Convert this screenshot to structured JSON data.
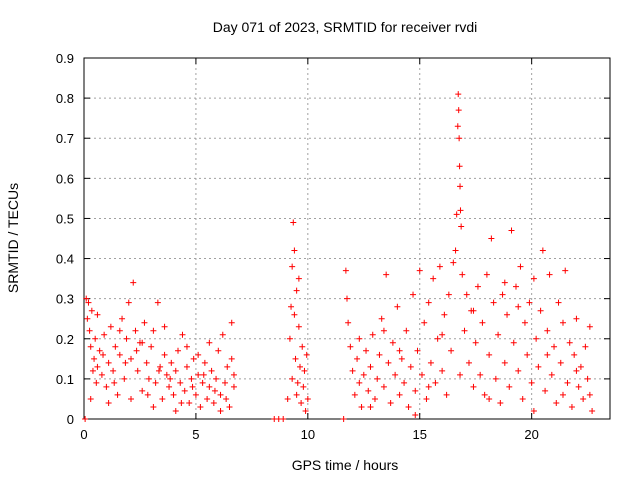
{
  "chart_data": {
    "type": "scatter",
    "title": "Day 071 of 2023, SRMTID for receiver rvdi",
    "xlabel": "GPS time / hours",
    "ylabel": "SRMTID / TECUs",
    "xlim": [
      0,
      23.5
    ],
    "ylim": [
      0,
      0.9
    ],
    "xticks": [
      0,
      5,
      10,
      15,
      20
    ],
    "yticks": [
      0,
      0.1,
      0.2,
      0.3,
      0.4,
      0.5,
      0.6,
      0.7,
      0.8,
      0.9
    ],
    "xtick_labels": [
      "0",
      "5",
      "10",
      "15",
      "20"
    ],
    "ytick_labels": [
      "0",
      "0.1",
      "0.2",
      "0.3",
      "0.4",
      "0.5",
      "0.6",
      "0.7",
      "0.8",
      "0.9"
    ],
    "grid": true,
    "marker": "+",
    "color": "#ff0000",
    "series": [
      {
        "name": "SRMTID",
        "points": [
          [
            0.05,
            0.0
          ],
          [
            0.1,
            0.3
          ],
          [
            0.15,
            0.25
          ],
          [
            0.2,
            0.29
          ],
          [
            0.25,
            0.22
          ],
          [
            0.3,
            0.18
          ],
          [
            0.35,
            0.27
          ],
          [
            0.4,
            0.12
          ],
          [
            0.45,
            0.15
          ],
          [
            0.5,
            0.2
          ],
          [
            0.55,
            0.09
          ],
          [
            0.6,
            0.13
          ],
          [
            0.7,
            0.17
          ],
          [
            0.8,
            0.11
          ],
          [
            0.9,
            0.21
          ],
          [
            1.0,
            0.08
          ],
          [
            1.1,
            0.14
          ],
          [
            1.2,
            0.23
          ],
          [
            1.3,
            0.12
          ],
          [
            1.4,
            0.18
          ],
          [
            1.5,
            0.06
          ],
          [
            1.6,
            0.16
          ],
          [
            1.7,
            0.25
          ],
          [
            1.8,
            0.1
          ],
          [
            1.9,
            0.2
          ],
          [
            2.0,
            0.29
          ],
          [
            2.1,
            0.15
          ],
          [
            2.2,
            0.34
          ],
          [
            2.3,
            0.22
          ],
          [
            2.4,
            0.12
          ],
          [
            2.5,
            0.19
          ],
          [
            2.6,
            0.07
          ],
          [
            2.7,
            0.24
          ],
          [
            2.8,
            0.14
          ],
          [
            2.9,
            0.1
          ],
          [
            3.0,
            0.18
          ],
          [
            3.1,
            0.22
          ],
          [
            3.2,
            0.09
          ],
          [
            3.3,
            0.29
          ],
          [
            3.4,
            0.13
          ],
          [
            3.5,
            0.05
          ],
          [
            3.6,
            0.16
          ],
          [
            3.7,
            0.11
          ],
          [
            3.8,
            0.08
          ],
          [
            3.9,
            0.14
          ],
          [
            4.0,
            0.06
          ],
          [
            4.1,
            0.12
          ],
          [
            4.2,
            0.17
          ],
          [
            4.3,
            0.09
          ],
          [
            4.4,
            0.21
          ],
          [
            4.5,
            0.07
          ],
          [
            4.6,
            0.13
          ],
          [
            4.7,
            0.04
          ],
          [
            4.8,
            0.1
          ],
          [
            4.9,
            0.15
          ],
          [
            5.0,
            0.06
          ],
          [
            5.1,
            0.11
          ],
          [
            5.2,
            0.03
          ],
          [
            5.3,
            0.09
          ],
          [
            5.4,
            0.14
          ],
          [
            5.5,
            0.05
          ],
          [
            5.6,
            0.08
          ],
          [
            5.7,
            0.12
          ],
          [
            5.8,
            0.04
          ],
          [
            5.9,
            0.1
          ],
          [
            6.0,
            0.17
          ],
          [
            6.1,
            0.06
          ],
          [
            6.2,
            0.21
          ],
          [
            6.3,
            0.09
          ],
          [
            6.4,
            0.13
          ],
          [
            6.5,
            0.03
          ],
          [
            6.6,
            0.24
          ],
          [
            6.7,
            0.08
          ],
          [
            0.3,
            0.05
          ],
          [
            0.6,
            0.26
          ],
          [
            1.1,
            0.04
          ],
          [
            1.6,
            0.22
          ],
          [
            2.1,
            0.05
          ],
          [
            2.6,
            0.19
          ],
          [
            3.1,
            0.03
          ],
          [
            3.6,
            0.23
          ],
          [
            4.1,
            0.02
          ],
          [
            4.6,
            0.18
          ],
          [
            5.1,
            0.16
          ],
          [
            5.6,
            0.19
          ],
          [
            6.1,
            0.02
          ],
          [
            6.6,
            0.15
          ],
          [
            0.85,
            0.16
          ],
          [
            1.35,
            0.09
          ],
          [
            1.85,
            0.14
          ],
          [
            2.35,
            0.17
          ],
          [
            2.85,
            0.06
          ],
          [
            3.35,
            0.12
          ],
          [
            3.85,
            0.1
          ],
          [
            4.35,
            0.04
          ],
          [
            4.85,
            0.08
          ],
          [
            5.35,
            0.11
          ],
          [
            5.85,
            0.07
          ],
          [
            6.35,
            0.05
          ],
          [
            6.7,
            0.11
          ],
          [
            8.5,
            0.0
          ],
          [
            8.7,
            0.0
          ],
          [
            8.9,
            0.0
          ],
          [
            9.1,
            0.05
          ],
          [
            9.2,
            0.2
          ],
          [
            9.25,
            0.28
          ],
          [
            9.3,
            0.38
          ],
          [
            9.35,
            0.49
          ],
          [
            9.4,
            0.42
          ],
          [
            9.45,
            0.15
          ],
          [
            9.5,
            0.32
          ],
          [
            9.55,
            0.09
          ],
          [
            9.6,
            0.23
          ],
          [
            9.65,
            0.13
          ],
          [
            9.7,
            0.04
          ],
          [
            9.75,
            0.18
          ],
          [
            9.8,
            0.08
          ],
          [
            9.85,
            0.12
          ],
          [
            9.9,
            0.02
          ],
          [
            9.95,
            0.16
          ],
          [
            10.0,
            0.05
          ],
          [
            9.3,
            0.1
          ],
          [
            9.4,
            0.26
          ],
          [
            9.5,
            0.06
          ],
          [
            9.6,
            0.35
          ],
          [
            11.6,
            0.0
          ],
          [
            11.7,
            0.37
          ],
          [
            11.75,
            0.3
          ],
          [
            11.8,
            0.24
          ],
          [
            11.9,
            0.18
          ],
          [
            12.0,
            0.12
          ],
          [
            12.1,
            0.06
          ],
          [
            12.2,
            0.15
          ],
          [
            12.3,
            0.09
          ],
          [
            12.4,
            0.03
          ],
          [
            12.5,
            0.11
          ],
          [
            12.6,
            0.17
          ],
          [
            12.7,
            0.07
          ],
          [
            12.8,
            0.13
          ],
          [
            12.9,
            0.21
          ],
          [
            13.0,
            0.05
          ],
          [
            13.1,
            0.1
          ],
          [
            13.2,
            0.16
          ],
          [
            13.3,
            0.25
          ],
          [
            13.4,
            0.08
          ],
          [
            13.5,
            0.36
          ],
          [
            13.6,
            0.14
          ],
          [
            13.7,
            0.04
          ],
          [
            13.8,
            0.19
          ],
          [
            13.9,
            0.11
          ],
          [
            14.0,
            0.28
          ],
          [
            14.1,
            0.06
          ],
          [
            14.2,
            0.15
          ],
          [
            14.3,
            0.09
          ],
          [
            14.4,
            0.22
          ],
          [
            14.5,
            0.03
          ],
          [
            14.6,
            0.13
          ],
          [
            14.7,
            0.31
          ],
          [
            14.8,
            0.07
          ],
          [
            14.9,
            0.17
          ],
          [
            15.0,
            0.37
          ],
          [
            15.1,
            0.11
          ],
          [
            15.2,
            0.24
          ],
          [
            15.3,
            0.05
          ],
          [
            15.4,
            0.29
          ],
          [
            15.5,
            0.14
          ],
          [
            15.6,
            0.35
          ],
          [
            15.7,
            0.09
          ],
          [
            15.8,
            0.2
          ],
          [
            15.9,
            0.38
          ],
          [
            16.0,
            0.12
          ],
          [
            16.1,
            0.26
          ],
          [
            16.2,
            0.06
          ],
          [
            16.3,
            0.31
          ],
          [
            16.4,
            0.17
          ],
          [
            16.5,
            0.39
          ],
          [
            16.6,
            0.42
          ],
          [
            16.65,
            0.51
          ],
          [
            16.7,
            0.73
          ],
          [
            16.72,
            0.81
          ],
          [
            16.74,
            0.77
          ],
          [
            16.76,
            0.7
          ],
          [
            16.78,
            0.63
          ],
          [
            16.8,
            0.58
          ],
          [
            16.82,
            0.52
          ],
          [
            16.85,
            0.48
          ],
          [
            16.9,
            0.36
          ],
          [
            17.0,
            0.22
          ],
          [
            17.1,
            0.31
          ],
          [
            17.2,
            0.14
          ],
          [
            17.3,
            0.27
          ],
          [
            17.4,
            0.08
          ],
          [
            17.5,
            0.19
          ],
          [
            17.6,
            0.33
          ],
          [
            17.7,
            0.11
          ],
          [
            17.8,
            0.24
          ],
          [
            17.9,
            0.06
          ],
          [
            18.0,
            0.36
          ],
          [
            18.1,
            0.16
          ],
          [
            18.2,
            0.45
          ],
          [
            18.3,
            0.29
          ],
          [
            18.4,
            0.1
          ],
          [
            18.5,
            0.21
          ],
          [
            18.6,
            0.04
          ],
          [
            18.7,
            0.31
          ],
          [
            18.8,
            0.14
          ],
          [
            18.9,
            0.26
          ],
          [
            19.0,
            0.08
          ],
          [
            19.1,
            0.47
          ],
          [
            19.2,
            0.19
          ],
          [
            19.3,
            0.33
          ],
          [
            19.4,
            0.12
          ],
          [
            19.5,
            0.38
          ],
          [
            19.6,
            0.05
          ],
          [
            19.7,
            0.24
          ],
          [
            19.8,
            0.16
          ],
          [
            19.9,
            0.29
          ],
          [
            20.0,
            0.09
          ],
          [
            20.1,
            0.35
          ],
          [
            20.2,
            0.2
          ],
          [
            20.3,
            0.13
          ],
          [
            20.4,
            0.27
          ],
          [
            20.5,
            0.42
          ],
          [
            20.6,
            0.07
          ],
          [
            20.7,
            0.22
          ],
          [
            20.8,
            0.36
          ],
          [
            20.9,
            0.11
          ],
          [
            21.0,
            0.18
          ],
          [
            21.1,
            0.04
          ],
          [
            21.2,
            0.29
          ],
          [
            21.3,
            0.14
          ],
          [
            21.4,
            0.24
          ],
          [
            21.5,
            0.37
          ],
          [
            21.6,
            0.09
          ],
          [
            21.7,
            0.19
          ],
          [
            21.8,
            0.03
          ],
          [
            21.9,
            0.16
          ],
          [
            22.0,
            0.25
          ],
          [
            22.1,
            0.08
          ],
          [
            22.2,
            0.13
          ],
          [
            22.3,
            0.05
          ],
          [
            22.4,
            0.18
          ],
          [
            22.5,
            0.1
          ],
          [
            22.6,
            0.23
          ],
          [
            22.7,
            0.02
          ],
          [
            12.3,
            0.2
          ],
          [
            12.8,
            0.03
          ],
          [
            13.4,
            0.22
          ],
          [
            14.1,
            0.17
          ],
          [
            14.8,
            0.01
          ],
          [
            15.4,
            0.08
          ],
          [
            16.0,
            0.21
          ],
          [
            16.8,
            0.11
          ],
          [
            17.4,
            0.27
          ],
          [
            18.1,
            0.05
          ],
          [
            18.8,
            0.34
          ],
          [
            19.4,
            0.28
          ],
          [
            20.1,
            0.02
          ],
          [
            20.7,
            0.16
          ],
          [
            21.4,
            0.06
          ],
          [
            22.0,
            0.12
          ],
          [
            22.6,
            0.06
          ]
        ]
      }
    ]
  }
}
